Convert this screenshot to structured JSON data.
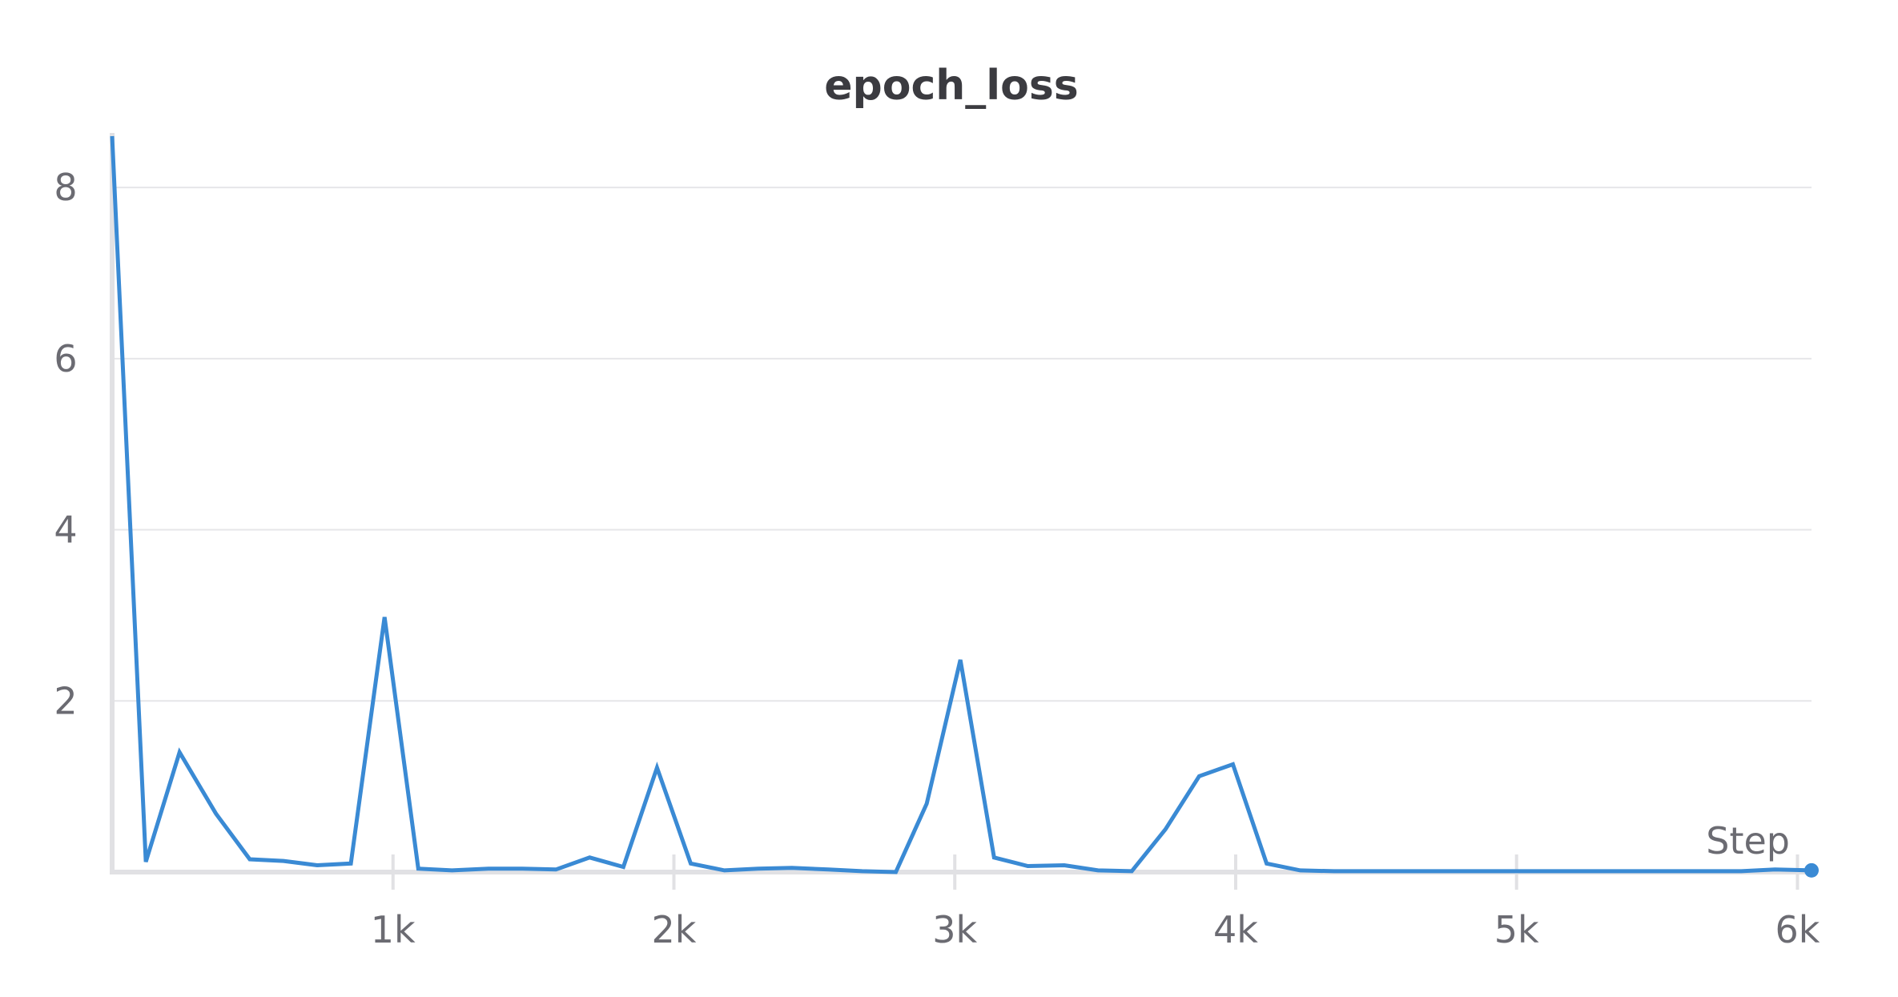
{
  "chart_data": {
    "type": "line",
    "title": "epoch_loss",
    "xlabel": "Step",
    "ylabel": "",
    "xlim": [
      0,
      6050
    ],
    "ylim": [
      0,
      8.6
    ],
    "x_ticks": [
      1000,
      2000,
      3000,
      4000,
      5000,
      6000
    ],
    "x_tick_labels": [
      "1k",
      "2k",
      "3k",
      "4k",
      "5k",
      "6k"
    ],
    "y_ticks": [
      2,
      4,
      6,
      8
    ],
    "y_tick_labels": [
      "2",
      "4",
      "6",
      "8"
    ],
    "grid": true,
    "series": [
      {
        "color": "#3a8ad4",
        "x": [
          0,
          120,
          240,
          370,
          490,
          610,
          730,
          850,
          970,
          1090,
          1210,
          1340,
          1460,
          1580,
          1700,
          1820,
          1940,
          2060,
          2180,
          2300,
          2420,
          2550,
          2670,
          2790,
          2900,
          3020,
          3140,
          3260,
          3390,
          3510,
          3630,
          3750,
          3870,
          3990,
          4110,
          4230,
          4350,
          4470,
          4600,
          4720,
          4840,
          4960,
          5080,
          5200,
          5320,
          5440,
          5560,
          5680,
          5800,
          5920,
          6050
        ],
        "y": [
          8.6,
          0.12,
          1.4,
          0.68,
          0.15,
          0.13,
          0.08,
          0.1,
          2.98,
          0.04,
          0.02,
          0.04,
          0.04,
          0.03,
          0.17,
          0.06,
          1.22,
          0.1,
          0.02,
          0.04,
          0.05,
          0.03,
          0.01,
          0.0,
          0.8,
          2.48,
          0.17,
          0.07,
          0.08,
          0.02,
          0.01,
          0.5,
          1.12,
          1.26,
          0.1,
          0.02,
          0.01,
          0.01,
          0.01,
          0.01,
          0.01,
          0.01,
          0.01,
          0.01,
          0.01,
          0.01,
          0.01,
          0.01,
          0.01,
          0.03,
          0.02
        ]
      }
    ]
  }
}
